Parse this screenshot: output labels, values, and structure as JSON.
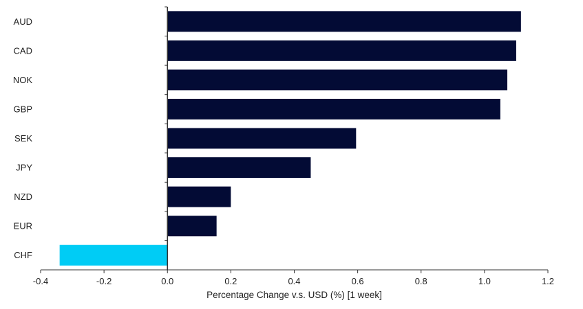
{
  "chart_data": {
    "type": "bar",
    "orientation": "horizontal",
    "categories": [
      "AUD",
      "CAD",
      "NOK",
      "GBP",
      "SEK",
      "JPY",
      "NZD",
      "EUR",
      "CHF"
    ],
    "values": [
      1.115,
      1.1,
      1.072,
      1.05,
      0.595,
      0.452,
      0.2,
      0.155,
      -0.34
    ],
    "xlabel": "Percentage Change v.s. USD (%) [1 week]",
    "ylabel": "",
    "title": "",
    "xlim": [
      -0.4,
      1.2
    ],
    "xticks": [
      -0.4,
      -0.2,
      0.0,
      0.2,
      0.4,
      0.6,
      0.8,
      1.0,
      1.2
    ],
    "xtick_labels": [
      "-0.4",
      "-0.2",
      "0.0",
      "0.2",
      "0.4",
      "0.6",
      "0.8",
      "1.0",
      "1.2"
    ],
    "grid": false,
    "legend": "none",
    "colors": {
      "positive": "#030b35",
      "negative": "#00ccf5",
      "axis": "#333333"
    }
  }
}
